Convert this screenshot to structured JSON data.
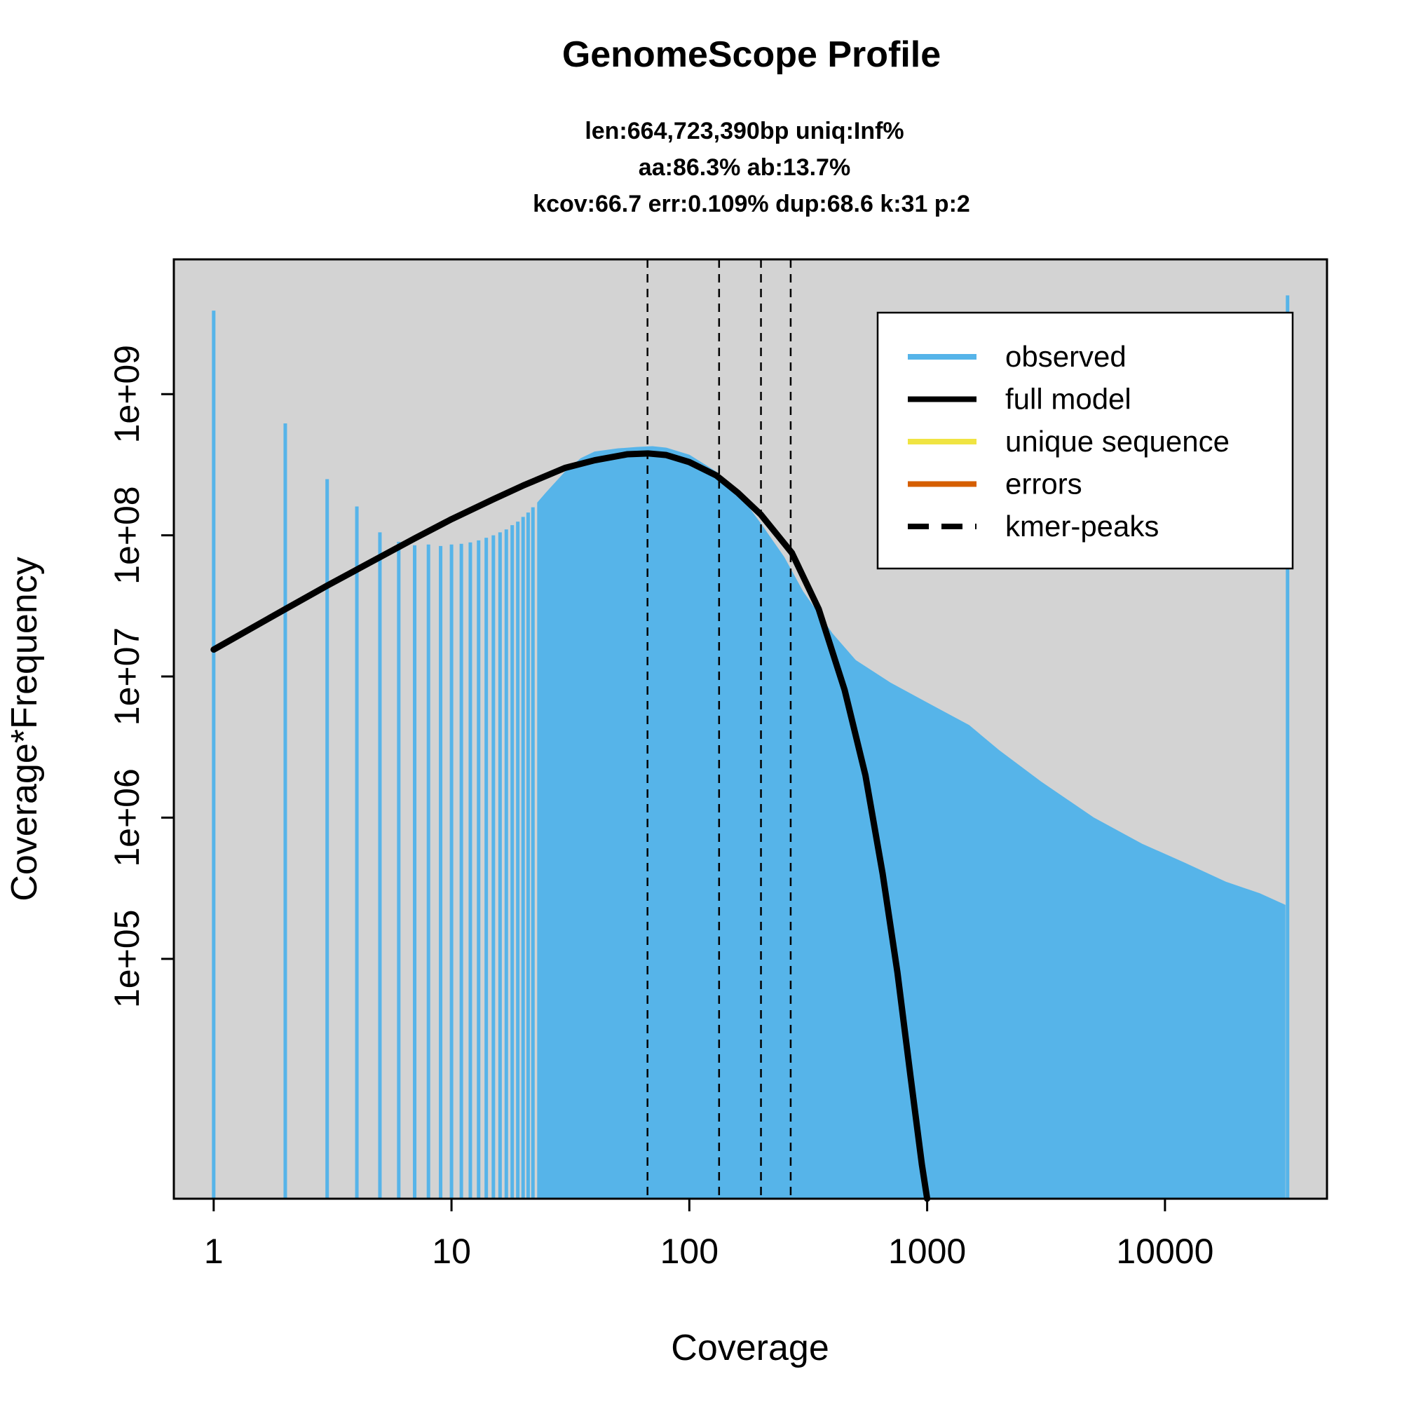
{
  "chart_data": {
    "type": "bar",
    "title": "GenomeScope Profile",
    "subtitle_lines": [
      "len:664,723,390bp uniq:Inf%",
      "aa:86.3% ab:13.7%",
      "kcov:66.7 err:0.109%  dup:68.6  k:31 p:2"
    ],
    "xlabel": "Coverage",
    "ylabel": "Coverage*Frequency",
    "x_scale": "log",
    "y_scale": "log",
    "xlim": [
      0.68,
      48000
    ],
    "ylim": [
      2000,
      9000000000
    ],
    "x_ticks": [
      1,
      10,
      100,
      1000,
      10000
    ],
    "x_tick_labels": [
      "1",
      "10",
      "100",
      "1000",
      "10000"
    ],
    "y_ticks": [
      100000,
      1000000,
      10000000,
      100000000,
      1000000000
    ],
    "y_tick_labels": [
      "1e+05",
      "1e+06",
      "1e+07",
      "1e+08",
      "1e+09"
    ],
    "background": "#d3d3d3",
    "grid": false,
    "legend_position": "top-right",
    "legend": [
      {
        "label": "observed",
        "color": "#56B4E9",
        "style": "solid"
      },
      {
        "label": "full model",
        "color": "#000000",
        "style": "solid"
      },
      {
        "label": "unique sequence",
        "color": "#F0E442",
        "style": "solid"
      },
      {
        "label": "errors",
        "color": "#D55E00",
        "style": "solid"
      },
      {
        "label": "kmer-peaks",
        "color": "#000000",
        "style": "dashed"
      }
    ],
    "observed_discrete": [
      {
        "x": 1,
        "y": 3900000000
      },
      {
        "x": 2,
        "y": 620000000
      },
      {
        "x": 3,
        "y": 250000000
      },
      {
        "x": 4,
        "y": 160000000
      },
      {
        "x": 5,
        "y": 105000000
      },
      {
        "x": 6,
        "y": 90000000
      },
      {
        "x": 7,
        "y": 85000000
      },
      {
        "x": 8,
        "y": 86000000
      },
      {
        "x": 9,
        "y": 84000000
      },
      {
        "x": 10,
        "y": 86000000
      },
      {
        "x": 11,
        "y": 87000000
      },
      {
        "x": 12,
        "y": 89000000
      },
      {
        "x": 13,
        "y": 92000000
      },
      {
        "x": 14,
        "y": 96000000
      },
      {
        "x": 15,
        "y": 100000000
      },
      {
        "x": 16,
        "y": 105000000
      },
      {
        "x": 17,
        "y": 110000000
      },
      {
        "x": 18,
        "y": 118000000
      },
      {
        "x": 19,
        "y": 125000000
      },
      {
        "x": 20,
        "y": 135000000
      },
      {
        "x": 21,
        "y": 145000000
      },
      {
        "x": 22,
        "y": 158000000
      }
    ],
    "observed_curve": [
      {
        "x": 23,
        "y": 170000000
      },
      {
        "x": 25,
        "y": 200000000
      },
      {
        "x": 30,
        "y": 280000000
      },
      {
        "x": 35,
        "y": 350000000
      },
      {
        "x": 40,
        "y": 390000000
      },
      {
        "x": 50,
        "y": 410000000
      },
      {
        "x": 60,
        "y": 420000000
      },
      {
        "x": 70,
        "y": 425000000
      },
      {
        "x": 80,
        "y": 415000000
      },
      {
        "x": 100,
        "y": 370000000
      },
      {
        "x": 130,
        "y": 280000000
      },
      {
        "x": 160,
        "y": 200000000
      },
      {
        "x": 200,
        "y": 120000000
      },
      {
        "x": 250,
        "y": 70000000
      },
      {
        "x": 300,
        "y": 40000000
      },
      {
        "x": 400,
        "y": 20000000
      },
      {
        "x": 500,
        "y": 13000000
      },
      {
        "x": 700,
        "y": 9000000
      },
      {
        "x": 1000,
        "y": 6500000
      },
      {
        "x": 1500,
        "y": 4500000
      },
      {
        "x": 2000,
        "y": 3000000
      },
      {
        "x": 3000,
        "y": 1800000
      },
      {
        "x": 5000,
        "y": 1000000
      },
      {
        "x": 8000,
        "y": 650000
      },
      {
        "x": 12000,
        "y": 480000
      },
      {
        "x": 18000,
        "y": 350000
      },
      {
        "x": 25000,
        "y": 290000
      },
      {
        "x": 32000,
        "y": 240000
      }
    ],
    "observed_last_bin": {
      "x": 32767,
      "y": 5000000000
    },
    "full_model": [
      {
        "x": 1,
        "y": 15500000
      },
      {
        "x": 2,
        "y": 30000000
      },
      {
        "x": 3,
        "y": 44000000
      },
      {
        "x": 5,
        "y": 70000000
      },
      {
        "x": 7,
        "y": 95000000
      },
      {
        "x": 10,
        "y": 130000000
      },
      {
        "x": 15,
        "y": 180000000
      },
      {
        "x": 20,
        "y": 225000000
      },
      {
        "x": 30,
        "y": 300000000
      },
      {
        "x": 40,
        "y": 340000000
      },
      {
        "x": 55,
        "y": 375000000
      },
      {
        "x": 67,
        "y": 380000000
      },
      {
        "x": 80,
        "y": 370000000
      },
      {
        "x": 100,
        "y": 330000000
      },
      {
        "x": 130,
        "y": 265000000
      },
      {
        "x": 160,
        "y": 200000000
      },
      {
        "x": 200,
        "y": 140000000
      },
      {
        "x": 270,
        "y": 75000000
      },
      {
        "x": 350,
        "y": 30000000
      },
      {
        "x": 450,
        "y": 8000000
      },
      {
        "x": 550,
        "y": 2000000
      },
      {
        "x": 650,
        "y": 400000
      },
      {
        "x": 750,
        "y": 80000
      },
      {
        "x": 850,
        "y": 15000
      },
      {
        "x": 950,
        "y": 3500
      },
      {
        "x": 1000,
        "y": 1900
      }
    ],
    "kmer_peaks": [
      66.7,
      133.4,
      200.1,
      266.8
    ]
  }
}
